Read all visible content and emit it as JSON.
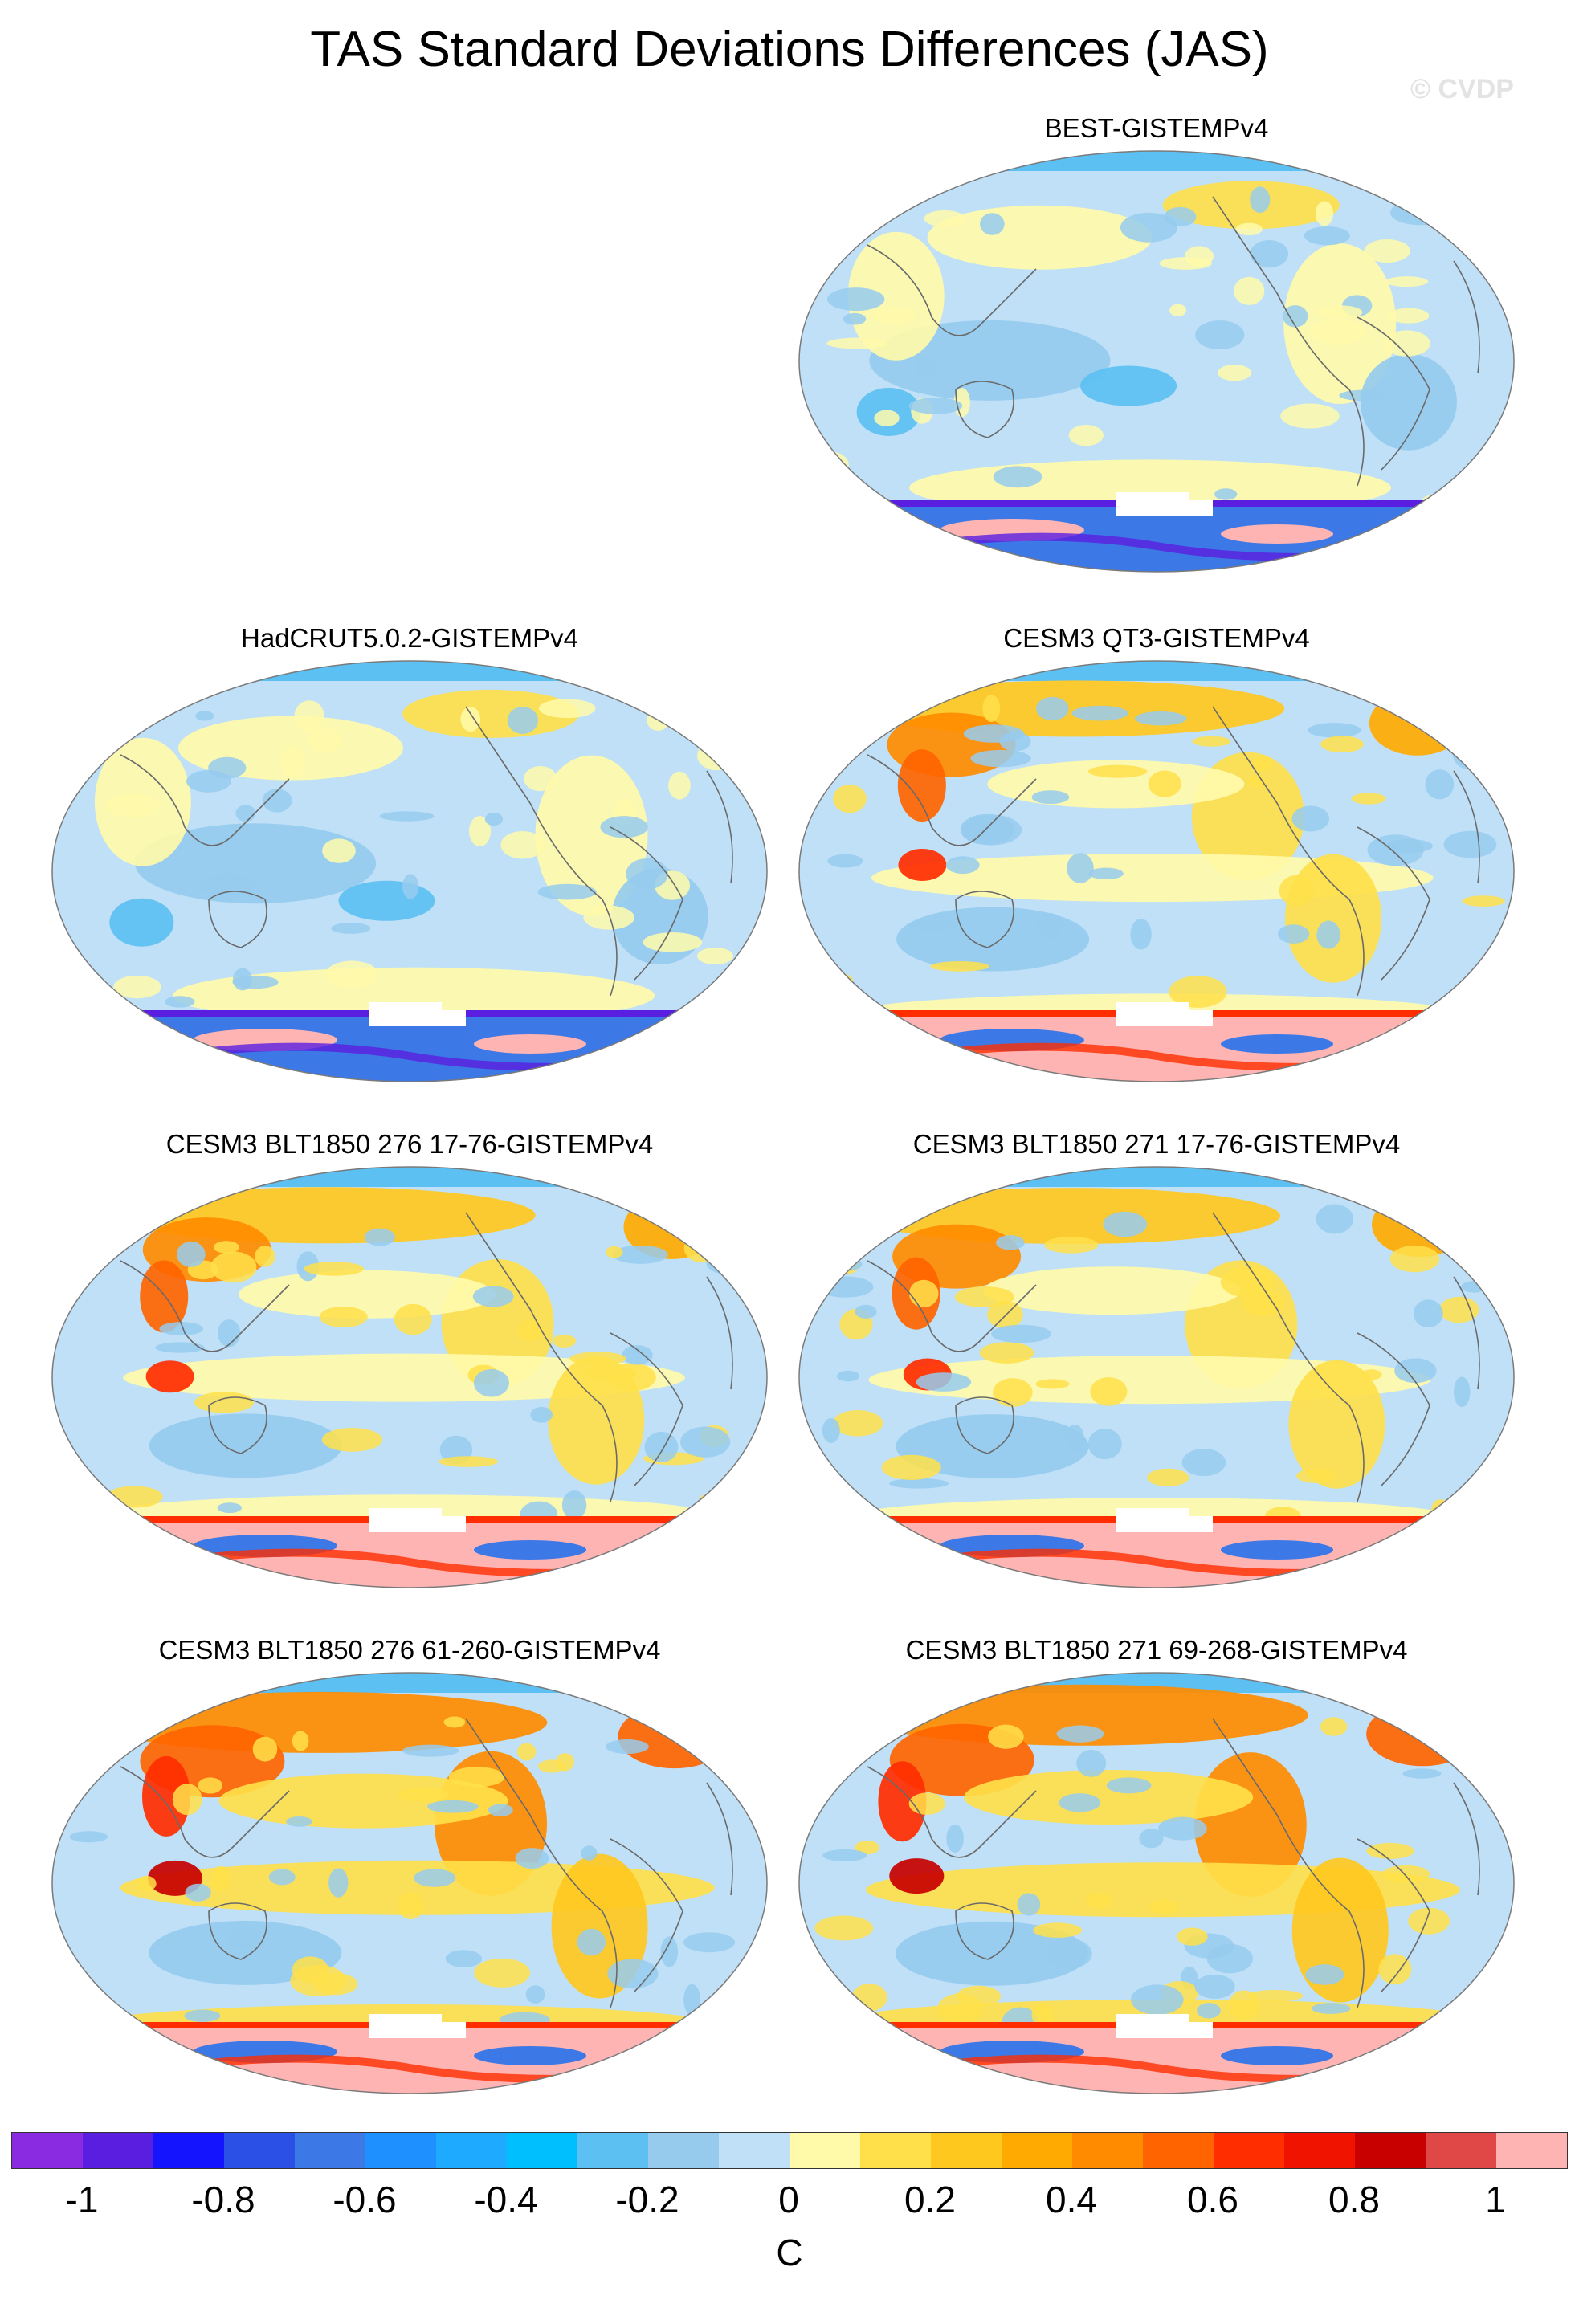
{
  "header": {
    "title": "TAS Standard Deviations Differences (JAS)",
    "watermark": "© CVDP"
  },
  "panels": [
    {
      "label": "BEST-GISTEMPv4",
      "variant": "obs"
    },
    {
      "label": "HadCRUT5.0.2-GISTEMPv4",
      "variant": "obs"
    },
    {
      "label": "CESM3 QT3-GISTEMPv4",
      "variant": "model"
    },
    {
      "label": "CESM3 BLT1850 276 17-76-GISTEMPv4",
      "variant": "model"
    },
    {
      "label": "CESM3 BLT1850 271 17-76-GISTEMPv4",
      "variant": "model"
    },
    {
      "label": "CESM3 BLT1850 276 61-260-GISTEMPv4",
      "variant": "model_strong"
    },
    {
      "label": "CESM3 BLT1850 271 69-268-GISTEMPv4",
      "variant": "model_strong"
    }
  ],
  "colorbar": {
    "unit": "C",
    "tick_labels": [
      "-1",
      "-0.8",
      "-0.6",
      "-0.4",
      "-0.2",
      "0",
      "0.2",
      "0.4",
      "0.6",
      "0.8",
      "1"
    ],
    "colors": [
      "#8a2be2",
      "#5a1ee0",
      "#1414ff",
      "#2a50e6",
      "#3c78e6",
      "#1e90ff",
      "#1eaaff",
      "#00bfff",
      "#5cc0f2",
      "#96cbee",
      "#bfe0f7",
      "#fffaaa",
      "#ffe04a",
      "#ffc81e",
      "#ffaa00",
      "#ff8c00",
      "#ff6400",
      "#ff2d00",
      "#f01400",
      "#c80000",
      "#e04848",
      "#ffb4b4"
    ]
  }
}
